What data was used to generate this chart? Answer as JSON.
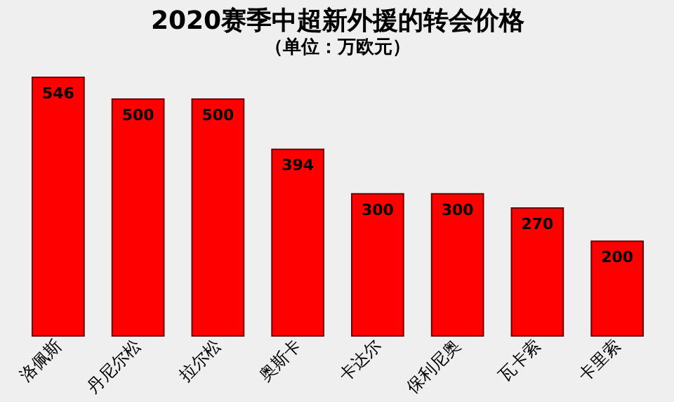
{
  "chart_data": {
    "type": "bar",
    "title": "2020赛季中超新外援的转会价格",
    "subtitle": "（单位：万欧元）",
    "categories": [
      "洛佩斯",
      "丹尼尔松",
      "拉尔松",
      "奥斯卡",
      "卡达尔",
      "保利尼奥",
      "瓦卡索",
      "卡里索"
    ],
    "values": [
      546,
      500,
      500,
      394,
      300,
      300,
      270,
      200
    ],
    "color": "#ff0000",
    "data_labels": true
  }
}
